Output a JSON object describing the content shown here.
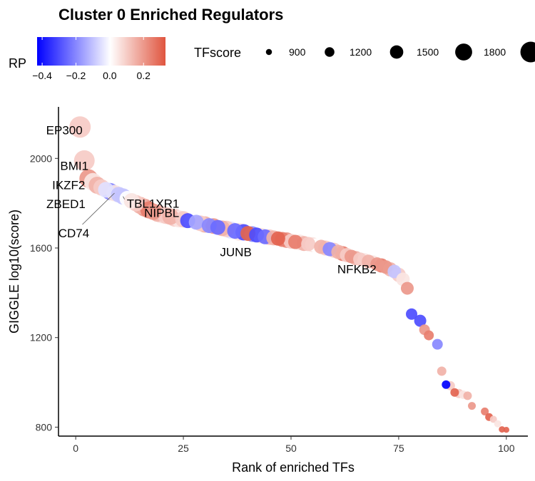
{
  "chart_data": {
    "type": "scatter",
    "title": "Cluster 0 Enriched Regulators",
    "xlabel": "Rank of enriched TFs",
    "ylabel": "GIGGLE log10(score)",
    "xlim": [
      -4,
      105
    ],
    "ylim": [
      760,
      2230
    ],
    "xticks": [
      0,
      25,
      50,
      75,
      100
    ],
    "yticks": [
      800,
      1200,
      1600,
      2000
    ],
    "grid": false,
    "color_legend": {
      "title": "RP",
      "ticks": [
        -0.4,
        -0.2,
        0.0,
        0.2
      ],
      "tick_labels": [
        "−0.4",
        "−0.2",
        "0.0",
        "0.2"
      ],
      "range": [
        -0.43,
        0.33
      ],
      "colors": [
        "#0000ff",
        "#ffffff",
        "#e0553f"
      ]
    },
    "size_legend": {
      "title": "TFscore",
      "values": [
        900,
        1200,
        1500,
        1800,
        2100
      ],
      "labels": [
        "900",
        "1200",
        "1500",
        "1800",
        ""
      ]
    },
    "points": [
      {
        "x": 1,
        "y": 2140,
        "rp": 0.1,
        "tf": 1900
      },
      {
        "x": 2,
        "y": 1990,
        "rp": 0.1,
        "tf": 1850
      },
      {
        "x": 3,
        "y": 1910,
        "rp": 0.2,
        "tf": 1700
      },
      {
        "x": 4,
        "y": 1895,
        "rp": 0.05,
        "tf": 1650
      },
      {
        "x": 5,
        "y": 1880,
        "rp": 0.15,
        "tf": 1600
      },
      {
        "x": 6,
        "y": 1870,
        "rp": 0.1,
        "tf": 1550
      },
      {
        "x": 7,
        "y": 1860,
        "rp": -0.05,
        "tf": 1500
      },
      {
        "x": 8,
        "y": 1852,
        "rp": -0.2,
        "tf": 1600
      },
      {
        "x": 9,
        "y": 1845,
        "rp": 0.05,
        "tf": 1550
      },
      {
        "x": 10,
        "y": 1838,
        "rp": -0.1,
        "tf": 1500
      },
      {
        "x": 11,
        "y": 1830,
        "rp": -0.1,
        "tf": 1550
      },
      {
        "x": 12,
        "y": 1820,
        "rp": 0.0,
        "tf": 1500
      },
      {
        "x": 13,
        "y": 1810,
        "rp": 0.05,
        "tf": 1500
      },
      {
        "x": 14,
        "y": 1800,
        "rp": 0.1,
        "tf": 1550
      },
      {
        "x": 15,
        "y": 1790,
        "rp": 0.15,
        "tf": 1600
      },
      {
        "x": 16,
        "y": 1780,
        "rp": 0.2,
        "tf": 1650
      },
      {
        "x": 17,
        "y": 1770,
        "rp": 0.25,
        "tf": 1600
      },
      {
        "x": 18,
        "y": 1762,
        "rp": 0.2,
        "tf": 1550
      },
      {
        "x": 19,
        "y": 1755,
        "rp": 0.15,
        "tf": 1600
      },
      {
        "x": 20,
        "y": 1750,
        "rp": 0.05,
        "tf": 1650
      },
      {
        "x": 21,
        "y": 1745,
        "rp": 0.1,
        "tf": 1600
      },
      {
        "x": 22,
        "y": 1740,
        "rp": 0.15,
        "tf": 1550
      },
      {
        "x": 23,
        "y": 1735,
        "rp": 0.1,
        "tf": 1650
      },
      {
        "x": 24,
        "y": 1730,
        "rp": 0.05,
        "tf": 1600
      },
      {
        "x": 25,
        "y": 1728,
        "rp": 0.1,
        "tf": 1550
      },
      {
        "x": 26,
        "y": 1722,
        "rp": -0.3,
        "tf": 1450
      },
      {
        "x": 27,
        "y": 1718,
        "rp": 0.0,
        "tf": 1550
      },
      {
        "x": 28,
        "y": 1715,
        "rp": -0.15,
        "tf": 1450
      },
      {
        "x": 29,
        "y": 1710,
        "rp": 0.1,
        "tf": 1500
      },
      {
        "x": 30,
        "y": 1705,
        "rp": 0.15,
        "tf": 1550
      },
      {
        "x": 31,
        "y": 1700,
        "rp": -0.2,
        "tf": 1450
      },
      {
        "x": 32,
        "y": 1698,
        "rp": 0.2,
        "tf": 1500
      },
      {
        "x": 33,
        "y": 1692,
        "rp": -0.25,
        "tf": 1450
      },
      {
        "x": 34,
        "y": 1688,
        "rp": 0.15,
        "tf": 1500
      },
      {
        "x": 35,
        "y": 1685,
        "rp": 0.1,
        "tf": 1550
      },
      {
        "x": 36,
        "y": 1680,
        "rp": -0.05,
        "tf": 1600
      },
      {
        "x": 37,
        "y": 1676,
        "rp": -0.25,
        "tf": 1500
      },
      {
        "x": 38,
        "y": 1672,
        "rp": 0.05,
        "tf": 1650
      },
      {
        "x": 39,
        "y": 1670,
        "rp": -0.3,
        "tf": 1550
      },
      {
        "x": 40,
        "y": 1665,
        "rp": 0.3,
        "tf": 1450
      },
      {
        "x": 41,
        "y": 1662,
        "rp": -0.2,
        "tf": 1500
      },
      {
        "x": 42,
        "y": 1658,
        "rp": -0.3,
        "tf": 1450
      },
      {
        "x": 43,
        "y": 1655,
        "rp": 0.05,
        "tf": 1500
      },
      {
        "x": 44,
        "y": 1650,
        "rp": -0.25,
        "tf": 1450
      },
      {
        "x": 45,
        "y": 1648,
        "rp": 0.1,
        "tf": 1500
      },
      {
        "x": 46,
        "y": 1645,
        "rp": 0.15,
        "tf": 1450
      },
      {
        "x": 47,
        "y": 1642,
        "rp": 0.3,
        "tf": 1400
      },
      {
        "x": 48,
        "y": 1638,
        "rp": 0.25,
        "tf": 1450
      },
      {
        "x": 49,
        "y": 1635,
        "rp": 0.2,
        "tf": 1500
      },
      {
        "x": 50,
        "y": 1630,
        "rp": 0.1,
        "tf": 1450
      },
      {
        "x": 51,
        "y": 1627,
        "rp": 0.25,
        "tf": 1400
      },
      {
        "x": 52,
        "y": 1625,
        "rp": 0.05,
        "tf": 1500
      },
      {
        "x": 53,
        "y": 1620,
        "rp": 0.15,
        "tf": 1450
      },
      {
        "x": 54,
        "y": 1618,
        "rp": 0.1,
        "tf": 1400
      },
      {
        "x": 55,
        "y": 1615,
        "rp": 0.05,
        "tf": 1450
      },
      {
        "x": 56,
        "y": 1610,
        "rp": 0.0,
        "tf": 1450
      },
      {
        "x": 57,
        "y": 1605,
        "rp": 0.15,
        "tf": 1400
      },
      {
        "x": 58,
        "y": 1600,
        "rp": 0.1,
        "tf": 1450
      },
      {
        "x": 59,
        "y": 1595,
        "rp": -0.2,
        "tf": 1400
      },
      {
        "x": 60,
        "y": 1590,
        "rp": 0.1,
        "tf": 1450
      },
      {
        "x": 61,
        "y": 1582,
        "rp": 0.15,
        "tf": 1400
      },
      {
        "x": 62,
        "y": 1575,
        "rp": 0.25,
        "tf": 1450
      },
      {
        "x": 63,
        "y": 1568,
        "rp": 0.1,
        "tf": 1400
      },
      {
        "x": 64,
        "y": 1562,
        "rp": 0.2,
        "tf": 1350
      },
      {
        "x": 65,
        "y": 1555,
        "rp": 0.15,
        "tf": 1400
      },
      {
        "x": 66,
        "y": 1550,
        "rp": 0.1,
        "tf": 1350
      },
      {
        "x": 67,
        "y": 1545,
        "rp": 0.05,
        "tf": 1400
      },
      {
        "x": 68,
        "y": 1540,
        "rp": 0.15,
        "tf": 1350
      },
      {
        "x": 69,
        "y": 1535,
        "rp": 0.05,
        "tf": 1400
      },
      {
        "x": 70,
        "y": 1528,
        "rp": 0.2,
        "tf": 1350
      },
      {
        "x": 71,
        "y": 1522,
        "rp": 0.25,
        "tf": 1400
      },
      {
        "x": 72,
        "y": 1515,
        "rp": 0.2,
        "tf": 1350
      },
      {
        "x": 73,
        "y": 1505,
        "rp": 0.15,
        "tf": 1400
      },
      {
        "x": 74,
        "y": 1495,
        "rp": -0.1,
        "tf": 1350
      },
      {
        "x": 75,
        "y": 1480,
        "rp": 0.1,
        "tf": 1400
      },
      {
        "x": 76,
        "y": 1460,
        "rp": 0.05,
        "tf": 1350
      },
      {
        "x": 77,
        "y": 1420,
        "rp": 0.2,
        "tf": 1300
      },
      {
        "x": 78,
        "y": 1305,
        "rp": -0.3,
        "tf": 1200
      },
      {
        "x": 80,
        "y": 1275,
        "rp": -0.3,
        "tf": 1250
      },
      {
        "x": 81,
        "y": 1235,
        "rp": 0.2,
        "tf": 1150
      },
      {
        "x": 82,
        "y": 1210,
        "rp": 0.25,
        "tf": 1100
      },
      {
        "x": 84,
        "y": 1170,
        "rp": -0.2,
        "tf": 1150
      },
      {
        "x": 85,
        "y": 1050,
        "rp": 0.15,
        "tf": 1050
      },
      {
        "x": 86,
        "y": 990,
        "rp": -0.43,
        "tf": 1000
      },
      {
        "x": 87,
        "y": 985,
        "rp": 0.1,
        "tf": 1050
      },
      {
        "x": 88,
        "y": 955,
        "rp": 0.3,
        "tf": 1000
      },
      {
        "x": 89,
        "y": 950,
        "rp": 0.1,
        "tf": 1050
      },
      {
        "x": 90,
        "y": 945,
        "rp": 0.05,
        "tf": 1000
      },
      {
        "x": 91,
        "y": 940,
        "rp": 0.15,
        "tf": 1000
      },
      {
        "x": 92,
        "y": 895,
        "rp": 0.2,
        "tf": 950
      },
      {
        "x": 95,
        "y": 870,
        "rp": 0.25,
        "tf": 950
      },
      {
        "x": 96,
        "y": 845,
        "rp": 0.3,
        "tf": 950
      },
      {
        "x": 97,
        "y": 835,
        "rp": 0.1,
        "tf": 900
      },
      {
        "x": 98,
        "y": 815,
        "rp": 0.05,
        "tf": 900
      },
      {
        "x": 99,
        "y": 790,
        "rp": 0.3,
        "tf": 850
      },
      {
        "x": 100,
        "y": 788,
        "rp": 0.3,
        "tf": 820
      }
    ],
    "labels": [
      {
        "text": "EP300",
        "x": 1,
        "y": 2140
      },
      {
        "text": "BMI1",
        "x": 2,
        "y": 1990
      },
      {
        "text": "IKZF2",
        "x": 3,
        "y": 1910
      },
      {
        "text": "TBL1XR1",
        "x": 11,
        "y": 1830
      },
      {
        "text": "ZBED1",
        "x": 8,
        "y": 1852
      },
      {
        "text": "NIPBL",
        "x": 15,
        "y": 1790
      },
      {
        "text": "CD74",
        "x": 9,
        "y": 1845
      },
      {
        "text": "JUNB",
        "x": 40,
        "y": 1665
      },
      {
        "text": "NFKB2",
        "x": 59,
        "y": 1595
      }
    ]
  }
}
